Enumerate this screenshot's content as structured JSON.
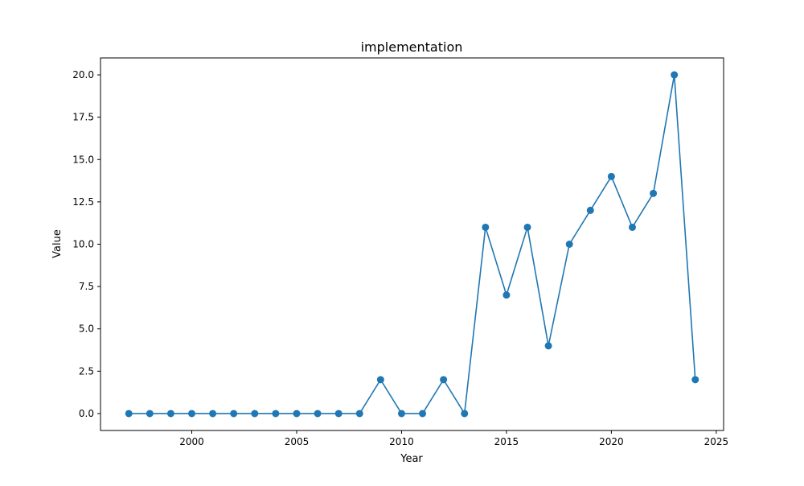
{
  "chart_data": {
    "type": "line",
    "title": "implementation",
    "xlabel": "Year",
    "ylabel": "Value",
    "x": [
      1997,
      1998,
      1999,
      2000,
      2001,
      2002,
      2003,
      2004,
      2005,
      2006,
      2007,
      2008,
      2009,
      2010,
      2011,
      2012,
      2013,
      2014,
      2015,
      2016,
      2017,
      2018,
      2019,
      2020,
      2021,
      2022,
      2023,
      2024
    ],
    "series": [
      {
        "values": [
          0,
          0,
          0,
          0,
          0,
          0,
          0,
          0,
          0,
          0,
          0,
          0,
          2,
          0,
          0,
          2,
          0,
          11,
          7,
          11,
          4,
          10,
          12,
          14,
          11,
          13,
          20,
          2
        ],
        "color": "#1f77b4",
        "marker": "circle"
      }
    ],
    "xlim": [
      1995.65,
      2025.35
    ],
    "ylim": [
      -1.0,
      21.0
    ],
    "xticks": [
      2000,
      2005,
      2010,
      2015,
      2020,
      2025
    ],
    "xtick_labels": [
      "2000",
      "2005",
      "2010",
      "2015",
      "2020",
      "2025"
    ],
    "yticks": [
      0,
      2.5,
      5,
      7.5,
      10,
      12.5,
      15,
      17.5,
      20
    ],
    "ytick_labels": [
      "0.0",
      "2.5",
      "5.0",
      "7.5",
      "10.0",
      "12.5",
      "15.0",
      "17.5",
      "20.0"
    ],
    "grid": false,
    "legend": "none"
  }
}
